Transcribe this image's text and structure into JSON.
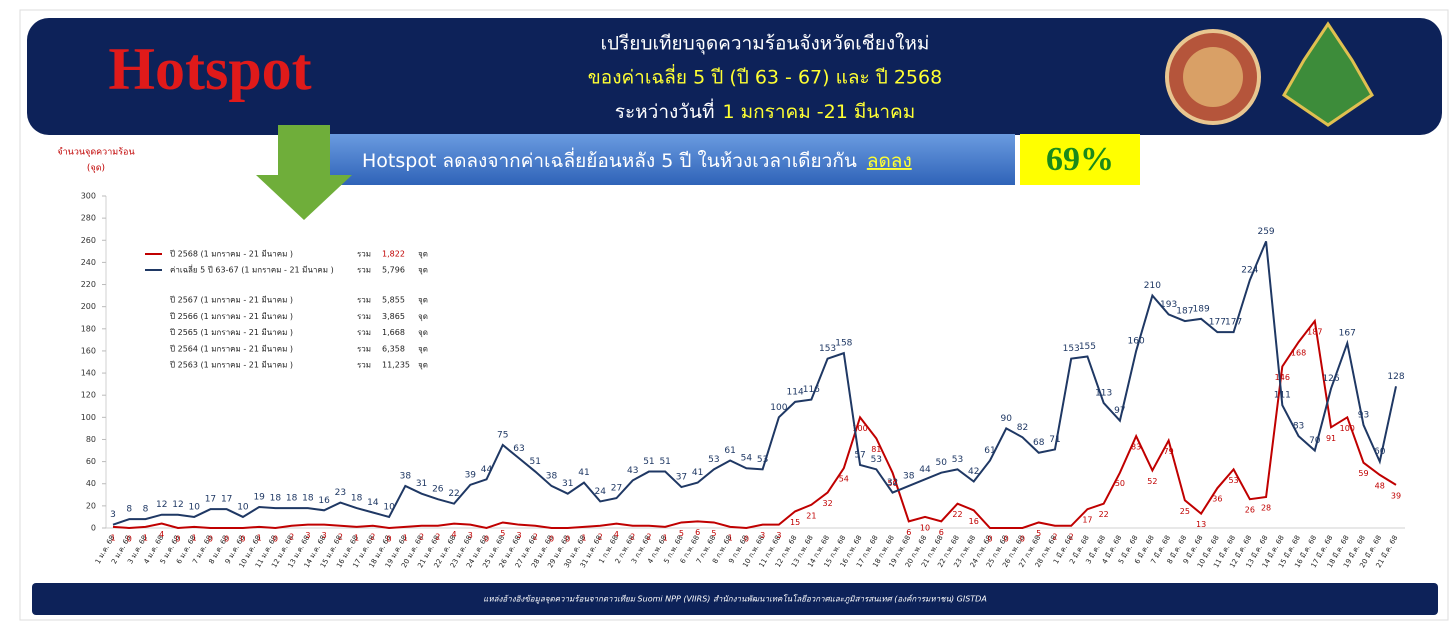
{
  "header": {
    "logo": "Hotspot",
    "title": "เปรียบเทียบจุดความร้อนจังหวัดเชียงใหม่",
    "subtitle": "ของค่าเฉลี่ย 5 ปี (ปี 63 - 67) และ ปี 2568",
    "period_prefix": "ระหว่างวันที่",
    "period": "1 มกราคม -21 มีนาคม"
  },
  "banner": {
    "text": "Hotspot ลดลงจากค่าเฉลี่ยย้อนหลัง 5 ปี ในห้วงเวลาเดียวกัน",
    "emphasis": "ลดลง",
    "percent": "69%"
  },
  "chart_data": {
    "type": "line",
    "y_label": [
      "จำนวนจุดความร้อน",
      "(จุด)"
    ],
    "categories": [
      "1 ม.ค. 68",
      "2 ม.ค. 68",
      "3 ม.ค. 68",
      "4 ม.ค. 68",
      "5 ม.ค. 68",
      "6 ม.ค. 68",
      "7 ม.ค. 68",
      "8 ม.ค. 68",
      "9 ม.ค. 68",
      "10 ม.ค. 68",
      "11 ม.ค. 68",
      "12 ม.ค. 68",
      "13 ม.ค. 68",
      "14 ม.ค. 68",
      "15 ม.ค. 68",
      "16 ม.ค. 68",
      "17 ม.ค. 68",
      "18 ม.ค. 68",
      "19 ม.ค. 68",
      "20 ม.ค. 68",
      "21 ม.ค. 68",
      "22 ม.ค. 68",
      "23 ม.ค. 68",
      "24 ม.ค. 68",
      "25 ม.ค. 68",
      "26 ม.ค. 68",
      "27 ม.ค. 68",
      "28 ม.ค. 68",
      "29 ม.ค. 68",
      "30 ม.ค. 68",
      "31 ม.ค. 68",
      "1 ก.พ. 68",
      "2 ก.พ. 68",
      "3 ก.พ. 68",
      "4 ก.พ. 68",
      "5 ก.พ. 68",
      "6 ก.พ. 68",
      "7 ก.พ. 68",
      "8 ก.พ. 68",
      "9 ก.พ. 68",
      "10 ก.พ. 68",
      "11 ก.พ. 68",
      "12 ก.พ. 68",
      "13 ก.พ. 68",
      "14 ก.พ. 68",
      "15 ก.พ. 68",
      "16 ก.พ. 68",
      "17 ก.พ. 68",
      "18 ก.พ. 68",
      "19 ก.พ. 68",
      "20 ก.พ. 68",
      "21 ก.พ. 68",
      "22 ก.พ. 68",
      "23 ก.พ. 68",
      "24 ก.พ. 68",
      "25 ก.พ. 68",
      "26 ก.พ. 68",
      "27 ก.พ. 68",
      "28 ก.พ. 68",
      "1 มี.ค. 68",
      "2 มี.ค. 68",
      "3 มี.ค. 68",
      "4 มี.ค. 68",
      "5 มี.ค. 68",
      "6 มี.ค. 68",
      "7 มี.ค. 68",
      "8 มี.ค. 68",
      "9 มี.ค. 68",
      "10 มี.ค. 68",
      "11 มี.ค. 68",
      "12 มี.ค. 68",
      "13 มี.ค. 68",
      "14 มี.ค. 68",
      "15 มี.ค. 68",
      "16 มี.ค. 68",
      "17 มี.ค. 68",
      "18 มี.ค. 68",
      "19 มี.ค. 68",
      "20 มี.ค. 68",
      "21 มี.ค. 68"
    ],
    "series": [
      {
        "name": "ปี 2568 (1 มกราคม - 21 มีนาคม )",
        "color": "#c00000",
        "total": "1,822",
        "values": [
          1,
          0,
          1,
          4,
          0,
          1,
          0,
          0,
          0,
          1,
          0,
          2,
          3,
          3,
          2,
          1,
          2,
          0,
          1,
          2,
          2,
          4,
          3,
          0,
          5,
          3,
          2,
          0,
          0,
          1,
          2,
          4,
          2,
          2,
          1,
          5,
          6,
          5,
          1,
          0,
          3,
          3,
          15,
          21,
          32,
          54,
          100,
          81,
          50,
          6,
          10,
          6,
          22,
          16,
          0,
          0,
          0,
          5,
          2,
          2,
          17,
          22,
          50,
          83,
          52,
          79,
          25,
          13,
          36,
          53,
          26,
          28,
          146,
          168,
          187,
          91,
          100,
          59,
          48,
          39
        ]
      },
      {
        "name": "ค่าเฉลี่ย 5 ปี 63-67 (1 มกราคม - 21 มีนาคม )",
        "color": "#1f3864",
        "total": "5,796",
        "values": [
          3,
          8,
          8,
          12,
          12,
          10,
          17,
          17,
          10,
          19,
          18,
          18,
          18,
          16,
          23,
          18,
          14,
          10,
          38,
          31,
          26,
          22,
          39,
          44,
          75,
          63,
          51,
          38,
          31,
          41,
          24,
          27,
          43,
          51,
          51,
          37,
          41,
          53,
          61,
          54,
          53,
          100,
          114,
          116,
          153,
          158,
          57,
          53,
          32,
          38,
          44,
          50,
          53,
          42,
          61,
          90,
          82,
          68,
          71,
          153,
          155,
          113,
          97,
          160,
          210,
          193,
          187,
          189,
          177,
          177,
          224,
          259,
          111,
          83,
          70,
          126,
          167,
          93,
          60,
          128
        ]
      }
    ],
    "other_years": [
      {
        "name": "ปี 2567 (1 มกราคม - 21 มีนาคม )",
        "total": "5,855"
      },
      {
        "name": "ปี 2566 (1 มกราคม - 21 มีนาคม )",
        "total": "3,865"
      },
      {
        "name": "ปี 2565 (1 มกราคม - 21 มีนาคม )",
        "total": "1,668"
      },
      {
        "name": "ปี 2564 (1 มกราคม - 21 มีนาคม )",
        "total": "6,358"
      },
      {
        "name": "ปี 2563 (1 มกราคม - 21 มีนาคม )",
        "total": "11,235"
      }
    ],
    "sum_label": "รวม",
    "unit": "จุด",
    "ylim": [
      0,
      300
    ],
    "yticks": [
      0,
      20,
      40,
      60,
      80,
      100,
      120,
      140,
      160,
      180,
      200,
      220,
      240,
      260,
      280,
      300
    ]
  },
  "footer": "แหล่งอ้างอิงข้อมูลจุดความร้อนจากดาวเทียม Suomi NPP (VIIRS) สำนักงานพัฒนาเทคโนโลยีอวกาศและภูมิสารสนเทศ (องค์การมหาชน) GISTDA"
}
